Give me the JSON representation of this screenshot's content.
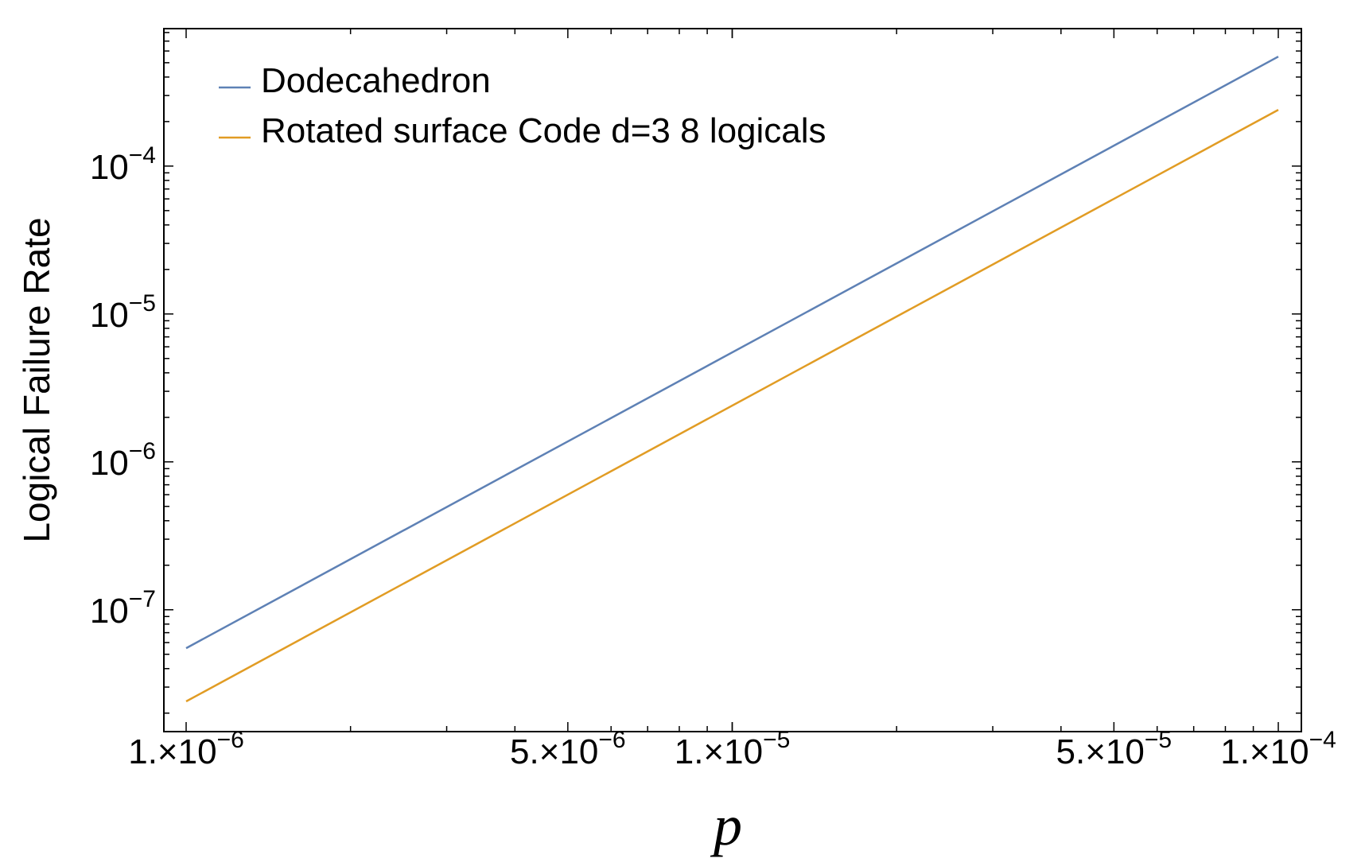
{
  "chart_data": {
    "type": "line",
    "title": "",
    "xlabel": "p",
    "ylabel": "Logical Failure Rate",
    "xscale": "log",
    "yscale": "log",
    "xlim": [
      1e-06,
      0.0001
    ],
    "ylim": [
      1.5e-08,
      0.00085
    ],
    "grid": false,
    "legend_position": "top-left",
    "x_ticks": [
      {
        "value": 1e-06,
        "mantissa": "1.",
        "exponent": "-6"
      },
      {
        "value": 5e-06,
        "mantissa": "5.",
        "exponent": "-6"
      },
      {
        "value": 1e-05,
        "mantissa": "1.",
        "exponent": "-5"
      },
      {
        "value": 5e-05,
        "mantissa": "5.",
        "exponent": "-5"
      },
      {
        "value": 0.0001,
        "mantissa": "1.",
        "exponent": "-4"
      }
    ],
    "y_ticks": [
      {
        "value": 1e-07,
        "exponent": "-7"
      },
      {
        "value": 1e-06,
        "exponent": "-6"
      },
      {
        "value": 1e-05,
        "exponent": "-5"
      },
      {
        "value": 0.0001,
        "exponent": "-4"
      }
    ],
    "series": [
      {
        "name": "Dodecahedron",
        "color": "#5e81b5",
        "x": [
          1e-06,
          0.0001
        ],
        "y": [
          5.5e-08,
          0.00055
        ]
      },
      {
        "name": "Rotated surface Code d=3 8 logicals",
        "color": "#e19c24",
        "x": [
          1e-06,
          0.0001
        ],
        "y": [
          2.4e-08,
          0.00024
        ]
      }
    ]
  }
}
